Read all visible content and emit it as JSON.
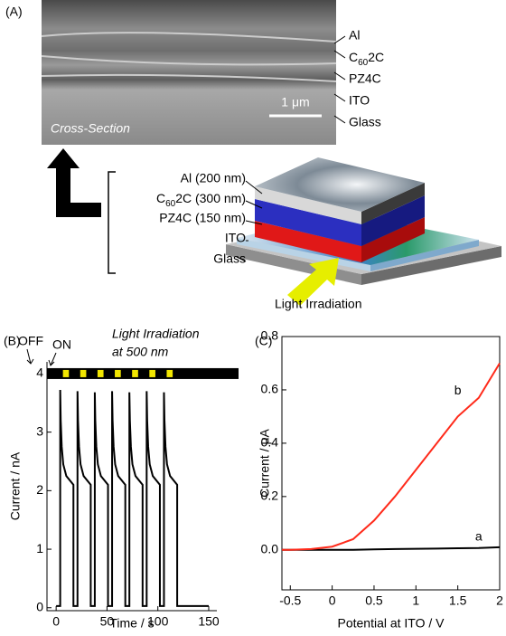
{
  "panel_a": {
    "label": "(A)",
    "sem_labels": [
      "Al",
      [
        "C",
        "60",
        "2C"
      ],
      "PZ4C",
      "ITO",
      "Glass"
    ],
    "sem_caption": "Cross-Section",
    "scale_bar": "1 μm",
    "device_labels": [
      "Al (200 nm)",
      [
        "C",
        "60",
        "2C (300 nm)"
      ],
      "PZ4C (150 nm)",
      "ITO",
      "Glass"
    ],
    "irradiation": "Light Irradiation"
  },
  "chart_data": [
    {
      "type": "line",
      "panel": "(B)",
      "xlabel": "Time / s",
      "ylabel": "Current / nA",
      "annotations": [
        "OFF",
        "ON",
        "Light Irradiation",
        "at 500 nm"
      ],
      "xlim": [
        -9,
        158
      ],
      "ylim": [
        -0.05,
        4.2
      ],
      "xticks": [
        0,
        50,
        100,
        150
      ],
      "yticks": [
        0,
        1,
        2,
        3,
        4
      ],
      "box": false,
      "light_bar_level": 4,
      "light_on": [
        [
          4,
          17
        ],
        [
          21,
          34
        ],
        [
          38,
          51
        ],
        [
          55,
          68
        ],
        [
          72,
          85
        ],
        [
          89,
          102
        ],
        [
          106,
          119
        ]
      ],
      "x": [
        0,
        4,
        4,
        4.5,
        5.5,
        7,
        10,
        17,
        17,
        21,
        21,
        21.5,
        22.5,
        24,
        27,
        34,
        34,
        38,
        38,
        38.5,
        39.5,
        41,
        44,
        51,
        51,
        55,
        55,
        55.5,
        56.5,
        58,
        61,
        68,
        68,
        72,
        72,
        72.5,
        73.5,
        75,
        78,
        85,
        85,
        89,
        89,
        89.5,
        90.5,
        92,
        95,
        102,
        102,
        106,
        106,
        106.5,
        107.5,
        109,
        112,
        119,
        119,
        150
      ],
      "series": [
        {
          "color": "#000000",
          "values": [
            0.03,
            0.03,
            3.72,
            3.2,
            2.75,
            2.45,
            2.25,
            2.1,
            0.03,
            0.03,
            3.7,
            3.2,
            2.75,
            2.45,
            2.25,
            2.1,
            0.03,
            0.03,
            3.68,
            3.2,
            2.75,
            2.45,
            2.25,
            2.1,
            0.03,
            0.03,
            3.7,
            3.2,
            2.75,
            2.45,
            2.25,
            2.1,
            0.03,
            0.03,
            3.68,
            3.2,
            2.75,
            2.45,
            2.25,
            2.1,
            0.03,
            0.03,
            3.7,
            3.2,
            2.75,
            2.45,
            2.25,
            2.1,
            0.03,
            0.03,
            3.68,
            3.2,
            2.75,
            2.45,
            2.25,
            2.1,
            0.03,
            0.03
          ]
        }
      ]
    },
    {
      "type": "line",
      "panel": "(C)",
      "xlabel": "Potential at ITO / V",
      "ylabel": "Current / μA",
      "xlim": [
        -0.6,
        2.0
      ],
      "ylim": [
        -0.15,
        0.8
      ],
      "xticks": [
        -0.5,
        0,
        0.5,
        1,
        1.5,
        2
      ],
      "yticks": [
        {
          "value": 0,
          "label": "0.0"
        },
        0.2,
        0.4,
        0.6,
        0.8
      ],
      "box": true,
      "x": [
        -0.6,
        -0.5,
        -0.25,
        0,
        0.25,
        0.5,
        0.75,
        1,
        1.25,
        1.5,
        1.75,
        2
      ],
      "series": [
        {
          "name": "a",
          "color": "#000000",
          "values": [
            0,
            0,
            0,
            0,
            0,
            0.002,
            0.003,
            0.004,
            0.005,
            0.006,
            0.007,
            0.01
          ]
        },
        {
          "name": "b",
          "color": "#ff2a1a",
          "values": [
            0,
            0,
            0.003,
            0.012,
            0.04,
            0.11,
            0.2,
            0.3,
            0.4,
            0.5,
            0.57,
            0.7
          ]
        }
      ]
    }
  ]
}
